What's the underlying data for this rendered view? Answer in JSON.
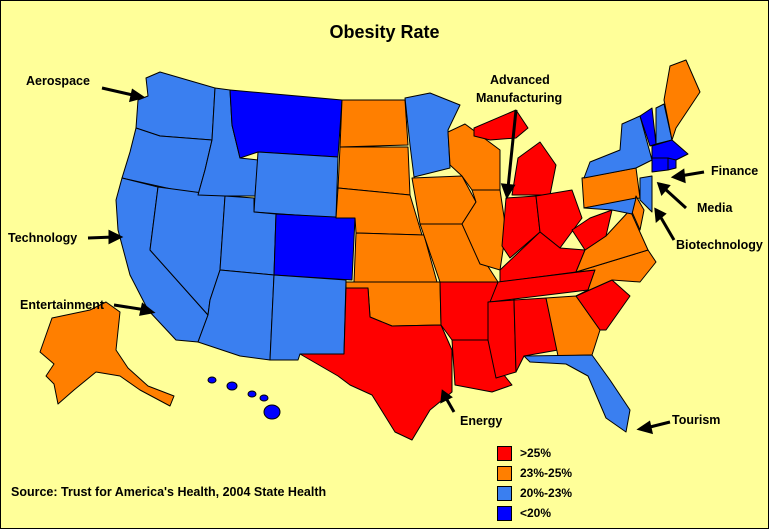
{
  "title": "Obesity Rate",
  "source": "Source: Trust for America's Health, 2004 State Health",
  "colors": {
    "high": "#FF0000",
    "midhigh": "#FF7F00",
    "mid": "#3A7FF0",
    "low": "#0000FF",
    "background": "#FFFF99"
  },
  "legend": [
    {
      "label": ">25%",
      "color": "#FF0000"
    },
    {
      "label": "23%-25%",
      "color": "#FF7F00"
    },
    {
      "label": "20%-23%",
      "color": "#3A7FF0"
    },
    {
      "label": "<20%",
      "color": "#0000FF"
    }
  ],
  "industries": {
    "aerospace": "Aerospace",
    "advanced_manufacturing_1": "Advanced",
    "advanced_manufacturing_2": "Manufacturing",
    "finance": "Finance",
    "media": "Media",
    "biotechnology": "Biotechnology",
    "technology": "Technology",
    "entertainment": "Entertainment",
    "energy": "Energy",
    "tourism": "Tourism"
  },
  "state_categories": {
    "WA": "mid",
    "OR": "mid",
    "CA": "mid",
    "NV": "mid",
    "ID": "mid",
    "MT": "low",
    "WY": "mid",
    "UT": "mid",
    "AZ": "mid",
    "CO": "low",
    "NM": "mid",
    "ND": "midhigh",
    "SD": "midhigh",
    "NE": "midhigh",
    "KS": "midhigh",
    "OK": "midhigh",
    "TX": "high",
    "MN": "mid",
    "IA": "midhigh",
    "MO": "midhigh",
    "AR": "high",
    "LA": "high",
    "WI": "midhigh",
    "IL": "midhigh",
    "MI": "high",
    "IN": "high",
    "OH": "high",
    "KY": "high",
    "TN": "high",
    "MS": "high",
    "AL": "high",
    "GA": "midhigh",
    "FL": "mid",
    "SC": "high",
    "NC": "midhigh",
    "VA": "midhigh",
    "WV": "high",
    "PA": "midhigh",
    "NY": "mid",
    "VT": "low",
    "NH": "mid",
    "ME": "midhigh",
    "MA": "low",
    "CT": "low",
    "RI": "low",
    "NJ": "mid",
    "DE": "midhigh",
    "MD": "mid",
    "AK": "midhigh",
    "HI": "low"
  }
}
